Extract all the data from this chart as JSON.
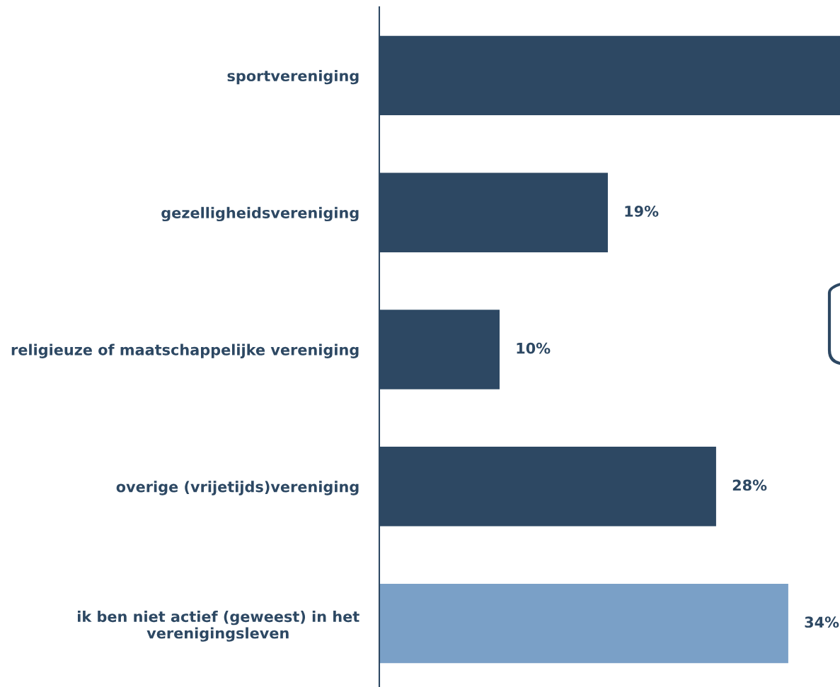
{
  "chart_data": {
    "type": "bar",
    "orientation": "horizontal",
    "categories": [
      "sportvereniging",
      "gezelligheidsvereniging",
      "religieuze of maatschappelijke vereniging",
      "overige (vrijetijds)vereniging",
      "ik ben niet actief (geweest) in het\nverenigingsleven"
    ],
    "values": [
      38.3,
      19,
      10,
      28,
      34
    ],
    "value_labels": [
      null,
      "19%",
      "10%",
      "28%",
      "34%"
    ],
    "colors": [
      "#2d4863",
      "#2d4863",
      "#2d4863",
      "#2d4863",
      "#7aa0c7"
    ],
    "xlim": [
      0,
      38.3
    ],
    "grid": false,
    "legend": false
  }
}
